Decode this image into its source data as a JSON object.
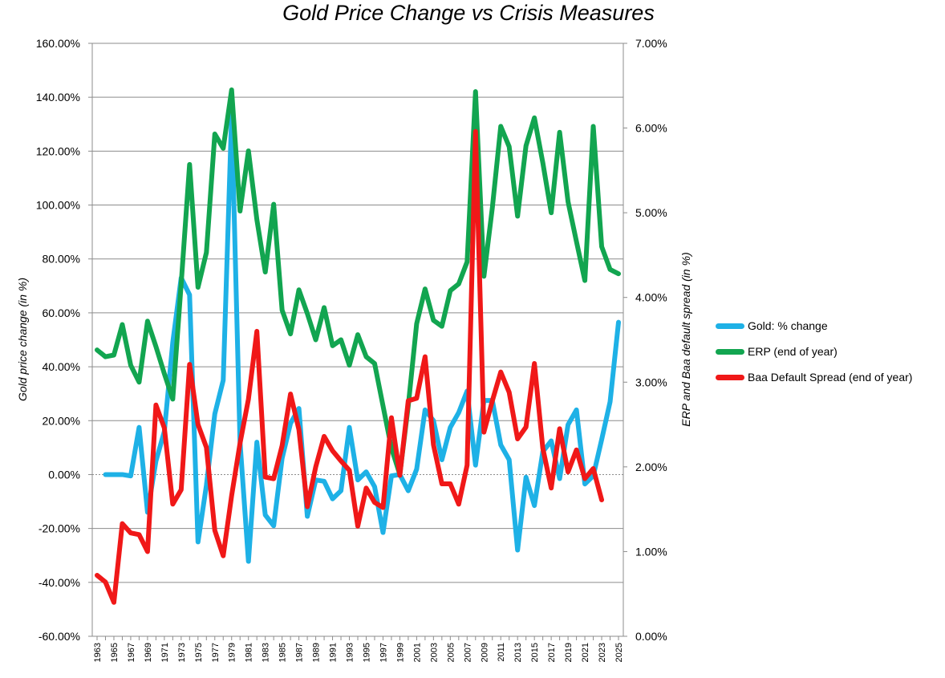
{
  "chart_data": {
    "type": "line",
    "title": "Gold Price Change vs Crisis Measures",
    "ylabel_left": "Gold price change (in %)",
    "ylabel_right": "ERP and Baa default spread (in %)",
    "ylim_left": [
      -60,
      160
    ],
    "ylim_right": [
      0,
      7
    ],
    "yticks_left": [
      "160.00%",
      "140.00%",
      "120.00%",
      "100.00%",
      "80.00%",
      "60.00%",
      "40.00%",
      "20.00%",
      "0.00%",
      "-20.00%",
      "-40.00%",
      "-60.00%"
    ],
    "yticks_right": [
      "7.00%",
      "6.00%",
      "5.00%",
      "4.00%",
      "3.00%",
      "2.00%",
      "1.00%",
      "0.00%"
    ],
    "x": [
      1963,
      1964,
      1965,
      1966,
      1967,
      1968,
      1969,
      1970,
      1971,
      1972,
      1973,
      1974,
      1975,
      1976,
      1977,
      1978,
      1979,
      1980,
      1981,
      1982,
      1983,
      1984,
      1985,
      1986,
      1987,
      1988,
      1989,
      1990,
      1991,
      1992,
      1993,
      1994,
      1995,
      1996,
      1997,
      1998,
      1999,
      2000,
      2001,
      2002,
      2003,
      2004,
      2005,
      2006,
      2007,
      2008,
      2009,
      2010,
      2011,
      2012,
      2013,
      2014,
      2015,
      2016,
      2017,
      2018,
      2019,
      2020,
      2021,
      2022,
      2023,
      2024,
      2025
    ],
    "xtick_labels": [
      "1963",
      "1965",
      "1967",
      "1969",
      "1971",
      "1973",
      "1975",
      "1977",
      "1979",
      "1981",
      "1983",
      "1985",
      "1987",
      "1989",
      "1991",
      "1993",
      "1995",
      "1997",
      "1999",
      "2001",
      "2003",
      "2005",
      "2007",
      "2009",
      "2011",
      "2013",
      "2015",
      "2017",
      "2019",
      "2021",
      "2023",
      "2025"
    ],
    "series": [
      {
        "name": "Gold: % change",
        "axis": "left",
        "color": "#1EB1E6",
        "values": [
          null,
          0,
          0,
          0,
          -0.5,
          17.5,
          -14,
          5,
          16,
          49,
          73,
          66.7,
          -25,
          -4,
          22.5,
          35,
          133.4,
          12,
          -32.2,
          12,
          -15,
          -19,
          6,
          19,
          24.5,
          -15.5,
          -2,
          -2.5,
          -9,
          -6,
          17.5,
          -2,
          1,
          -4.5,
          -21.5,
          -0.5,
          0,
          -6,
          2,
          24,
          20,
          5.5,
          17.5,
          23,
          31,
          3.5,
          27.5,
          27.5,
          11,
          5.5,
          -28,
          -1,
          -11.5,
          8.5,
          12.5,
          -1.5,
          18.5,
          24,
          -3.5,
          -0.5,
          13,
          27,
          56.5
        ]
      },
      {
        "name": "ERP (end of year)",
        "axis": "right",
        "color": "#12A550",
        "values": [
          3.38,
          3.3,
          3.32,
          3.68,
          3.2,
          3.0,
          3.72,
          3.42,
          3.1,
          2.8,
          4.16,
          5.57,
          4.12,
          4.53,
          5.93,
          5.76,
          6.45,
          5.02,
          5.73,
          4.92,
          4.3,
          5.1,
          3.85,
          3.57,
          4.09,
          3.81,
          3.5,
          3.88,
          3.43,
          3.5,
          3.2,
          3.56,
          3.3,
          3.22,
          2.72,
          2.22,
          1.91,
          2.72,
          3.69,
          4.1,
          3.73,
          3.66,
          4.08,
          4.16,
          4.42,
          6.43,
          4.25,
          5.06,
          6.02,
          5.78,
          4.96,
          5.79,
          6.12,
          5.59,
          5.0,
          5.95,
          5.13,
          4.66,
          4.2,
          6.02,
          4.6,
          4.33,
          4.28
        ]
      },
      {
        "name": "Baa Default Spread (end of year)",
        "axis": "right",
        "color": "#F01818",
        "values": [
          0.72,
          0.64,
          0.4,
          1.33,
          1.22,
          1.2,
          1.0,
          2.73,
          2.46,
          1.56,
          1.73,
          3.21,
          2.5,
          2.23,
          1.25,
          0.95,
          1.66,
          2.28,
          2.8,
          3.6,
          1.88,
          1.86,
          2.25,
          2.86,
          2.44,
          1.53,
          2.0,
          2.36,
          2.19,
          2.07,
          1.96,
          1.3,
          1.75,
          1.58,
          1.52,
          2.58,
          1.9,
          2.78,
          2.81,
          3.3,
          2.26,
          1.8,
          1.8,
          1.56,
          2.02,
          5.96,
          2.41,
          2.78,
          3.12,
          2.88,
          2.33,
          2.47,
          3.22,
          2.22,
          1.75,
          2.45,
          1.94,
          2.2,
          1.86,
          1.98,
          1.61,
          null,
          null
        ]
      }
    ]
  }
}
